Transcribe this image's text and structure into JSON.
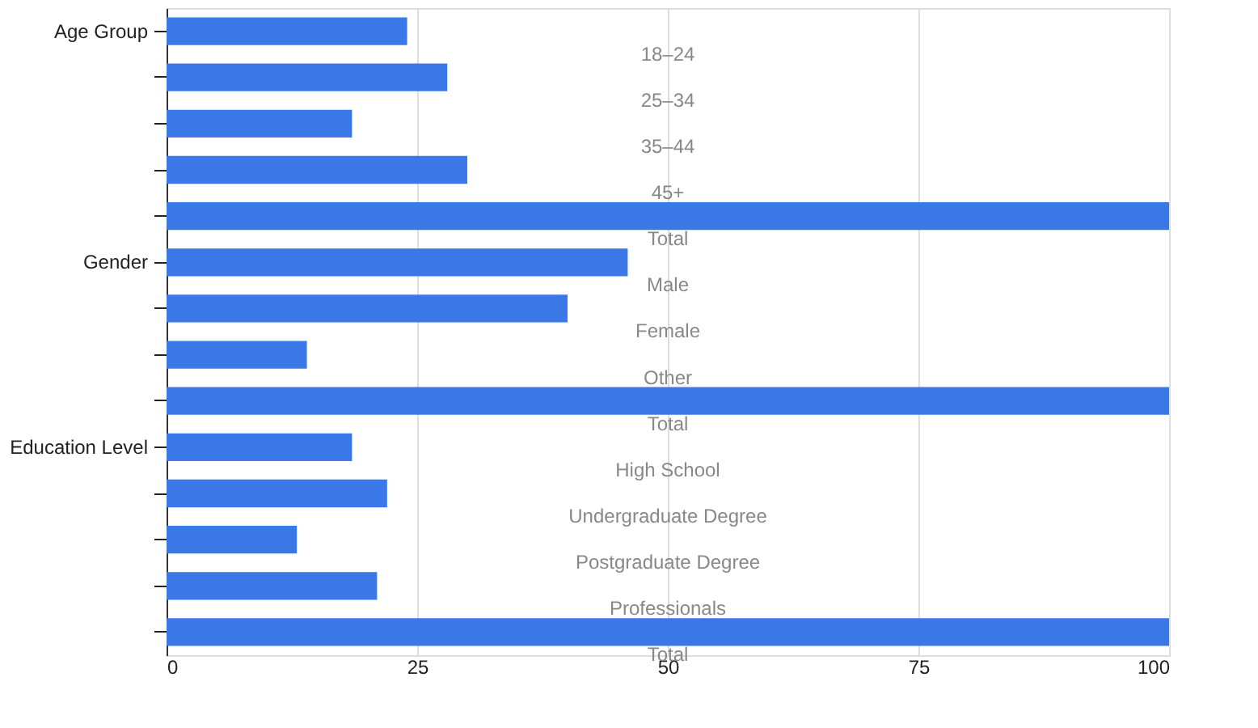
{
  "chart_data": {
    "type": "bar",
    "orientation": "horizontal",
    "categories": [
      "Age Group",
      null,
      null,
      null,
      null,
      "Gender",
      null,
      null,
      null,
      "Education Level",
      null,
      null,
      null,
      null
    ],
    "values": [
      24,
      28,
      18.5,
      30,
      100,
      46,
      40,
      14,
      100,
      18.5,
      22,
      13,
      21,
      100
    ],
    "color": "#3b78e7",
    "xlim": [
      0,
      100
    ],
    "xticks": [
      0,
      25,
      50,
      75,
      100
    ],
    "grid": "x",
    "annotations": [
      "18–24",
      "25–34",
      "35–44",
      "45+",
      "Total",
      "Male",
      "Female",
      "Other",
      "Total",
      "High School",
      "Undergraduate Degree",
      "Postgraduate Degree",
      "Professionals",
      "Total"
    ]
  }
}
